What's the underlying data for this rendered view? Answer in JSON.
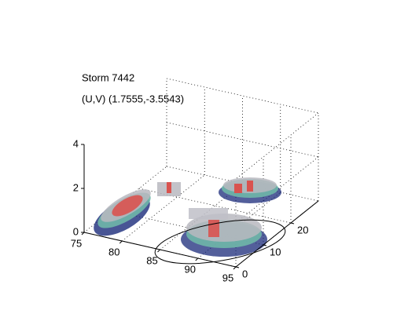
{
  "chart_data": {
    "type": "volume3d",
    "title": "Storm 7442",
    "subtitle": "(U,V) (1.7555,-3.5543)",
    "xlim": [
      75,
      95
    ],
    "xticks": [
      75,
      80,
      85,
      90,
      95
    ],
    "ylim": [
      0,
      30
    ],
    "yticks": [
      0,
      10,
      20
    ],
    "zlim": [
      0,
      4
    ],
    "zticks": [
      0,
      2,
      4
    ],
    "grid": true
  }
}
